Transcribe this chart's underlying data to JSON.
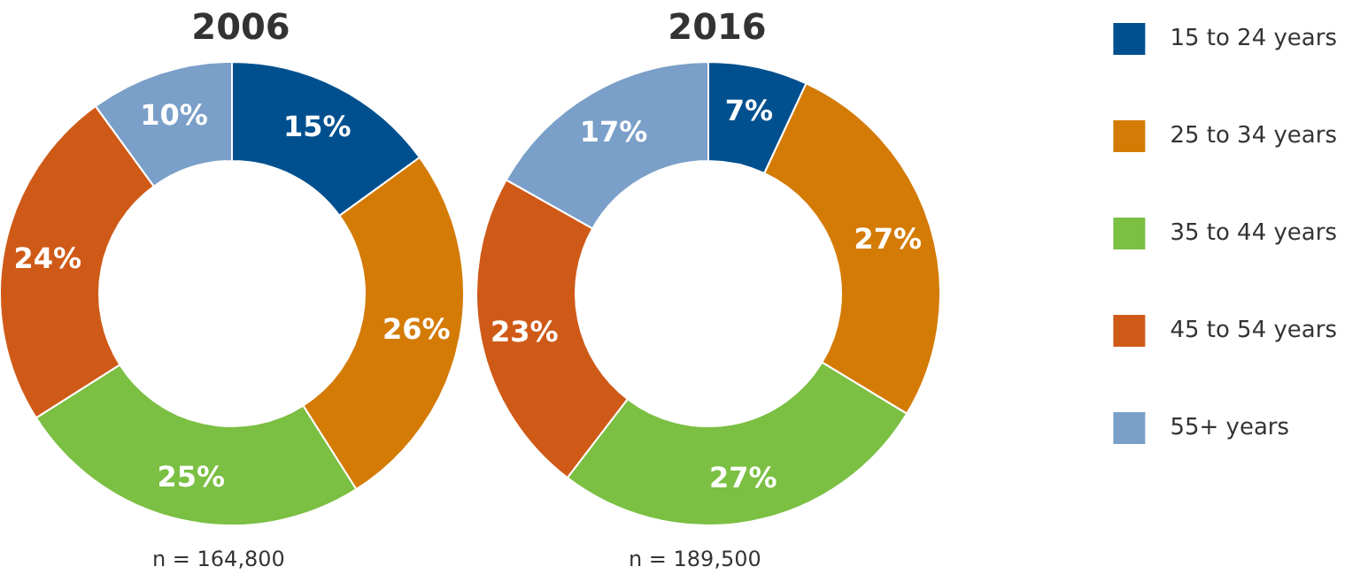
{
  "chart_data": [
    {
      "type": "donut",
      "title": "2006",
      "categories": [
        null,
        null,
        null,
        null,
        null
      ],
      "values": [
        15,
        26,
        25,
        24,
        10
      ],
      "colors": [
        "#00508f",
        "#d47b06",
        "#7bbf43",
        "#cf5a18",
        "#7a9fc8"
      ],
      "value_labels": [
        "15%",
        "26%",
        "25%",
        "24%",
        "10%"
      ],
      "annotations": [
        "n = 164,800"
      ]
    },
    {
      "type": "donut",
      "title": "2016",
      "categories": [
        "15 to 24 years",
        "25 to 34 years",
        "35 to 44 years",
        "45 to 54 years",
        "55+ years"
      ],
      "values": [
        7,
        27,
        27,
        23,
        17
      ],
      "colors": [
        "#00508f",
        "#d47b06",
        "#7bbf43",
        "#cf5a18",
        "#7a9fc8"
      ],
      "value_labels": [
        "7%",
        "27%",
        "27%",
        "23%",
        "17%"
      ],
      "legend": "right",
      "annotations": [
        "n = 189,500"
      ]
    }
  ]
}
